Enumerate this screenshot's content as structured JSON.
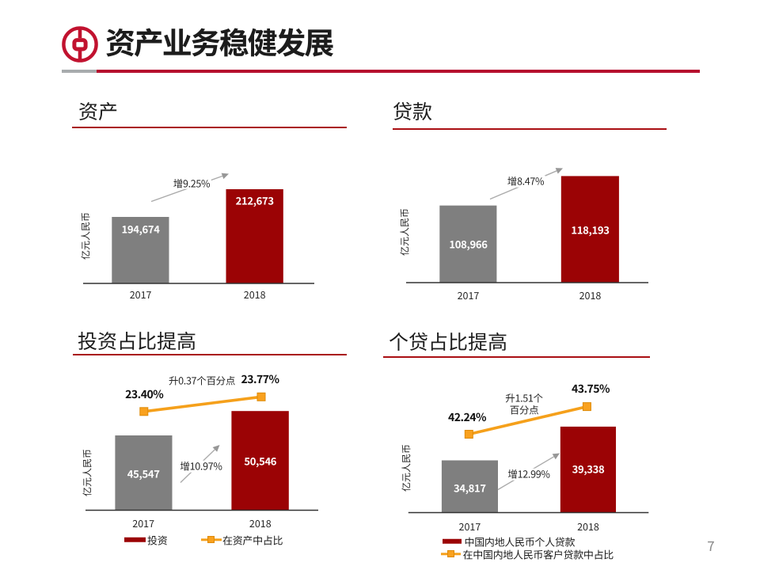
{
  "header": {
    "title": "资产业务稳健发展",
    "logo": "bank-of-china-logo"
  },
  "page_number": "7",
  "colors": {
    "bar_red": "#9B0305",
    "bar_gray": "#7F7F7F",
    "line_orange": "#F5A01B",
    "header_rule_red": "#B50E2E",
    "header_rule_gray": "#A8ABAD",
    "section_rule_red": "#A90F13",
    "arrow_gray": "#ABABAB",
    "axis_black": "#333333"
  },
  "chart_data": [
    {
      "type": "bar",
      "title": "资产",
      "ylabel": "亿元人民币",
      "categories": [
        "2017",
        "2018"
      ],
      "values": [
        194674,
        212673
      ],
      "value_labels": [
        "194,674",
        "212,673"
      ],
      "bar_colors": [
        "#7F7F7F",
        "#9B0305"
      ],
      "annotations": {
        "growth": "增9.25%"
      }
    },
    {
      "type": "bar",
      "title": "贷款",
      "ylabel": "亿元人民币",
      "categories": [
        "2017",
        "2018"
      ],
      "values": [
        108966,
        118193
      ],
      "value_labels": [
        "108,966",
        "118,193"
      ],
      "bar_colors": [
        "#7F7F7F",
        "#9B0305"
      ],
      "annotations": {
        "growth": "增8.47%"
      }
    },
    {
      "type": "bar+line",
      "title": "投资占比提高",
      "ylabel": "亿元人民币",
      "categories": [
        "2017",
        "2018"
      ],
      "series": [
        {
          "name": "投资",
          "type": "bar",
          "values": [
            45547,
            50546
          ],
          "value_labels": [
            "45,547",
            "50,546"
          ]
        },
        {
          "name": "在资产中占比",
          "type": "line",
          "values": [
            23.4,
            23.77
          ],
          "value_labels": [
            "23.40%",
            "23.77%"
          ]
        }
      ],
      "annotations": {
        "growth": "增10.97%",
        "rise": "升0.37个百分点"
      },
      "legend": [
        "投资",
        "在资产中占比"
      ]
    },
    {
      "type": "bar+line",
      "title": "个贷占比提高",
      "ylabel": "亿元人民币",
      "categories": [
        "2017",
        "2018"
      ],
      "series": [
        {
          "name": "中国内地人民币个人贷款",
          "type": "bar",
          "values": [
            34817,
            39338
          ],
          "value_labels": [
            "34,817",
            "39,338"
          ]
        },
        {
          "name": "在中国内地人民币客户贷款中占比",
          "type": "line",
          "values": [
            42.24,
            43.75
          ],
          "value_labels": [
            "42.24%",
            "43.75%"
          ]
        }
      ],
      "annotations": {
        "growth": "增12.99%",
        "rise": "升1.51个\n百分点"
      },
      "legend": [
        "中国内地人民币个人贷款",
        "在中国内地人民币客户贷款中占比"
      ]
    }
  ]
}
